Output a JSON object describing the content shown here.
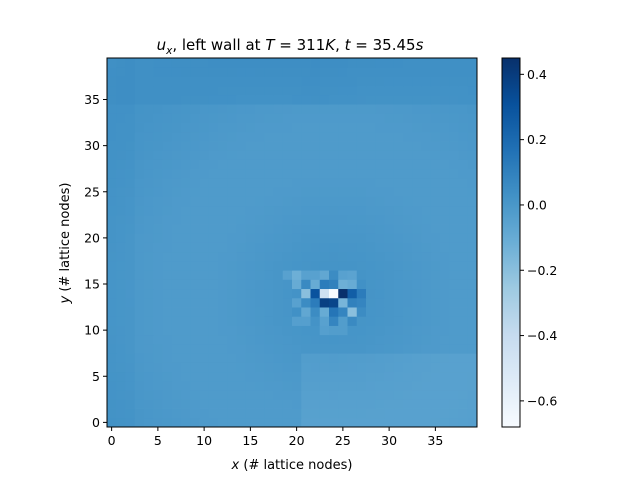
{
  "chart_data": {
    "type": "heatmap",
    "title": {
      "var": "u",
      "sub": "x",
      "middle": ", left wall at ",
      "T_sym": "T",
      "T_val": " = 311",
      "T_unit": "K",
      "sep": ", ",
      "t_sym": "t",
      "t_val": " = 35.45",
      "t_unit": "s"
    },
    "xlabel": {
      "sym": "x",
      "text": " (# lattice nodes)"
    },
    "ylabel": {
      "sym": "y",
      "text": " (# lattice nodes)"
    },
    "grid_size": [
      40,
      40
    ],
    "xlim": [
      -0.5,
      39.5
    ],
    "ylim": [
      -0.5,
      39.5
    ],
    "x_ticks": [
      0,
      5,
      10,
      15,
      20,
      25,
      30,
      35
    ],
    "y_ticks": [
      0,
      5,
      10,
      15,
      20,
      25,
      30,
      35
    ],
    "colormap": "Blues",
    "colorbar": {
      "vmin": -0.68,
      "vmax": 0.45,
      "ticks": [
        0.4,
        0.2,
        0.0,
        -0.2,
        -0.4,
        -0.6
      ],
      "tick_labels": [
        "0.4",
        "0.2",
        "0.0",
        "−0.2",
        "−0.4",
        "−0.6"
      ]
    },
    "field": {
      "background": 0.0,
      "top_band": 0.04,
      "lower_right_band": -0.03,
      "center": [
        24,
        14
      ],
      "anomalies": [
        {
          "x": 24,
          "y": 14,
          "v": -0.68
        },
        {
          "x": 25,
          "y": 14,
          "v": 0.45
        },
        {
          "x": 23,
          "y": 14,
          "v": -0.45
        },
        {
          "x": 22,
          "y": 14,
          "v": 0.3
        },
        {
          "x": 21,
          "y": 14,
          "v": -0.2
        },
        {
          "x": 26,
          "y": 14,
          "v": 0.25
        },
        {
          "x": 27,
          "y": 14,
          "v": 0.12
        },
        {
          "x": 23,
          "y": 13,
          "v": 0.38
        },
        {
          "x": 24,
          "y": 13,
          "v": 0.36
        },
        {
          "x": 22,
          "y": 13,
          "v": 0.12
        },
        {
          "x": 25,
          "y": 13,
          "v": -0.15
        },
        {
          "x": 26,
          "y": 13,
          "v": 0.1
        },
        {
          "x": 27,
          "y": 13,
          "v": 0.08
        },
        {
          "x": 21,
          "y": 13,
          "v": 0.05
        },
        {
          "x": 23,
          "y": 15,
          "v": 0.12
        },
        {
          "x": 24,
          "y": 15,
          "v": 0.1
        },
        {
          "x": 25,
          "y": 15,
          "v": -0.12
        },
        {
          "x": 22,
          "y": 15,
          "v": -0.1
        },
        {
          "x": 21,
          "y": 15,
          "v": 0.06
        },
        {
          "x": 26,
          "y": 15,
          "v": -0.1
        },
        {
          "x": 20,
          "y": 15,
          "v": -0.1
        },
        {
          "x": 24,
          "y": 12,
          "v": 0.15
        },
        {
          "x": 23,
          "y": 12,
          "v": -0.1
        },
        {
          "x": 25,
          "y": 12,
          "v": 0.08
        },
        {
          "x": 26,
          "y": 12,
          "v": -0.2
        },
        {
          "x": 22,
          "y": 12,
          "v": 0.05
        },
        {
          "x": 27,
          "y": 12,
          "v": 0.05
        },
        {
          "x": 21,
          "y": 12,
          "v": -0.08
        },
        {
          "x": 20,
          "y": 12,
          "v": 0.03
        },
        {
          "x": 23,
          "y": 16,
          "v": -0.08
        },
        {
          "x": 24,
          "y": 16,
          "v": 0.05
        },
        {
          "x": 22,
          "y": 16,
          "v": -0.05
        },
        {
          "x": 25,
          "y": 16,
          "v": -0.05
        },
        {
          "x": 21,
          "y": 16,
          "v": -0.05
        },
        {
          "x": 20,
          "y": 16,
          "v": -0.12
        },
        {
          "x": 19,
          "y": 16,
          "v": -0.05
        },
        {
          "x": 26,
          "y": 16,
          "v": -0.06
        },
        {
          "x": 24,
          "y": 11,
          "v": 0.08
        },
        {
          "x": 23,
          "y": 11,
          "v": -0.05
        },
        {
          "x": 26,
          "y": 11,
          "v": 0.06
        },
        {
          "x": 22,
          "y": 11,
          "v": 0.02
        },
        {
          "x": 21,
          "y": 11,
          "v": -0.04
        },
        {
          "x": 20,
          "y": 11,
          "v": -0.04
        },
        {
          "x": 25,
          "y": 11,
          "v": -0.03
        },
        {
          "x": 20,
          "y": 14,
          "v": 0.02
        },
        {
          "x": 20,
          "y": 13,
          "v": -0.05
        },
        {
          "x": 27,
          "y": 15,
          "v": 0.03
        },
        {
          "x": 25,
          "y": 10,
          "v": -0.03
        },
        {
          "x": 24,
          "y": 10,
          "v": -0.03
        },
        {
          "x": 23,
          "y": 10,
          "v": -0.04
        }
      ]
    }
  }
}
